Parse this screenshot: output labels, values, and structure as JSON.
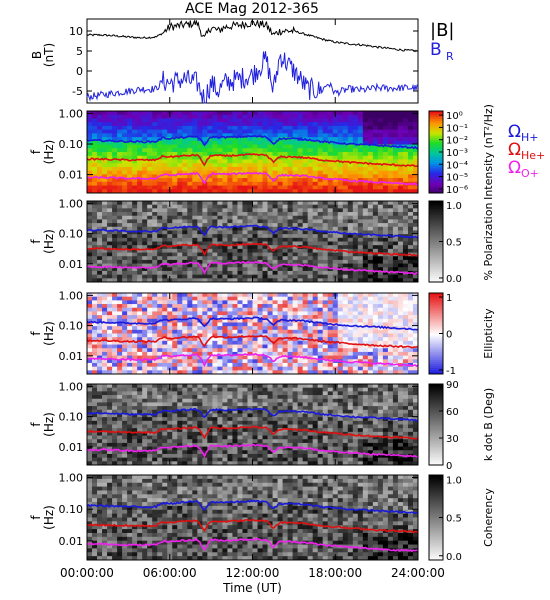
{
  "title": "ACE Mag 2012-365",
  "colors": {
    "magnitude": "#000000",
    "radial": "#2222dd",
    "proton": "#1a1adc",
    "helium": "#e01010",
    "oxygen": "#ee22ee"
  },
  "chart_data": [
    {
      "type": "line",
      "panel": "field",
      "ylabel": "B (nT)",
      "ylim": [
        -8,
        13
      ],
      "y_ticks": [
        "10",
        "5",
        "0",
        "-5"
      ],
      "legend": [
        {
          "label": "|B|",
          "color": "#000000"
        },
        {
          "label": "B",
          "sub": "R",
          "color": "#2222dd"
        }
      ],
      "series": [
        {
          "key": "B_mag",
          "color": "#000000",
          "x": [
            0,
            1,
            2,
            3,
            4,
            5,
            5.5,
            6,
            7,
            8,
            8.5,
            9,
            9.5,
            10,
            11,
            12,
            13,
            13.5,
            14,
            15,
            16,
            17,
            18,
            19,
            20,
            21,
            22,
            23,
            24
          ],
          "y": [
            9,
            9,
            8.8,
            8.5,
            8.3,
            8.5,
            9.5,
            11,
            11.5,
            12,
            8,
            11,
            10,
            11,
            11.5,
            12,
            11.5,
            9,
            10,
            10,
            9,
            8,
            7.2,
            6.8,
            6.5,
            6,
            5.6,
            5.2,
            5
          ]
        },
        {
          "key": "B_R",
          "color": "#2222dd",
          "x": [
            0,
            1,
            2,
            3,
            4,
            5,
            5.5,
            6,
            7,
            8,
            8.5,
            9,
            9.5,
            10,
            11,
            12,
            13,
            13.5,
            14,
            15,
            16,
            17,
            17.5,
            18,
            19,
            20,
            21,
            22,
            23,
            24
          ],
          "y": [
            -6.5,
            -6,
            -5.5,
            -5,
            -4.5,
            -4.5,
            -2.5,
            -3,
            -2,
            -3,
            -7,
            -3,
            -5,
            -3,
            -2,
            -1,
            3,
            -5,
            4,
            0,
            -4.5,
            -5,
            -3,
            -5.5,
            -4.5,
            -4.8,
            -4.2,
            -4.3,
            -4.2,
            -4.3
          ]
        }
      ]
    },
    {
      "type": "heatmap",
      "panel": "intensity",
      "ylabel": "f (Hz)",
      "y_ticks": [
        "1.00",
        "0.10",
        "0.01"
      ],
      "ylim": [
        0.0025,
        1.2
      ],
      "colorbar_label": "Intensity (nT²/Hz)",
      "colorbar_ticks": [
        "10⁰",
        "10⁻¹",
        "10⁻²",
        "10⁻³",
        "10⁻⁴",
        "10⁻⁵",
        "10⁻⁶"
      ],
      "gyrofrequency_labels": [
        {
          "label": "Ω",
          "sub": "H+",
          "color": "#1a1adc"
        },
        {
          "label": "Ω",
          "sub": "He+",
          "color": "#e01010"
        },
        {
          "label": "Ω",
          "sub": "O+",
          "color": "#ee22ee"
        }
      ]
    },
    {
      "type": "heatmap",
      "panel": "polarization",
      "ylabel": "f (Hz)",
      "y_ticks": [
        "1.00",
        "0.10",
        "0.01"
      ],
      "ylim": [
        0.0025,
        1.2
      ],
      "colorbar_label": "% Polarization",
      "colorbar_ticks": [
        "1.0",
        "0.5",
        "0.0"
      ]
    },
    {
      "type": "heatmap",
      "panel": "ellipticity",
      "ylabel": "f (Hz)",
      "y_ticks": [
        "1.00",
        "0.10",
        "0.01"
      ],
      "ylim": [
        0.0025,
        1.2
      ],
      "colorbar_label": "Ellipticity",
      "colorbar_ticks": [
        "1",
        "0",
        "-1"
      ]
    },
    {
      "type": "heatmap",
      "panel": "kdotb",
      "ylabel": "f (Hz)",
      "y_ticks": [
        "1.00",
        "0.10",
        "0.01"
      ],
      "ylim": [
        0.0025,
        1.2
      ],
      "colorbar_label": "k dot B (Deg)",
      "colorbar_ticks": [
        "90",
        "60",
        "30",
        "0"
      ]
    },
    {
      "type": "heatmap",
      "panel": "coherency",
      "ylabel": "f (Hz)",
      "y_ticks": [
        "1.00",
        "0.10",
        "0.01"
      ],
      "ylim": [
        0.0025,
        1.2
      ],
      "colorbar_label": "Coherency",
      "colorbar_ticks": [
        "1.0",
        "0.5",
        "0.0"
      ]
    }
  ],
  "gyrofrequencies": {
    "x": [
      0,
      1,
      2,
      3,
      4,
      5,
      5.5,
      6,
      7,
      8,
      8.5,
      9,
      10,
      11,
      12,
      13,
      13.5,
      14,
      15,
      16,
      17,
      18,
      19,
      20,
      21,
      22,
      23,
      24
    ],
    "H": [
      0.13,
      0.13,
      0.125,
      0.12,
      0.118,
      0.12,
      0.16,
      0.15,
      0.165,
      0.175,
      0.09,
      0.17,
      0.165,
      0.17,
      0.18,
      0.17,
      0.1,
      0.15,
      0.15,
      0.14,
      0.12,
      0.11,
      0.1,
      0.095,
      0.09,
      0.085,
      0.08,
      0.075
    ],
    "He": [
      0.032,
      0.032,
      0.031,
      0.03,
      0.03,
      0.03,
      0.04,
      0.038,
      0.041,
      0.044,
      0.02,
      0.043,
      0.041,
      0.043,
      0.045,
      0.043,
      0.025,
      0.038,
      0.038,
      0.035,
      0.03,
      0.028,
      0.025,
      0.024,
      0.022,
      0.021,
      0.02,
      0.019
    ],
    "O": [
      0.008,
      0.008,
      0.0078,
      0.0075,
      0.0074,
      0.0075,
      0.01,
      0.0095,
      0.0103,
      0.011,
      0.005,
      0.0108,
      0.0103,
      0.0108,
      0.0113,
      0.0108,
      0.0063,
      0.0095,
      0.0095,
      0.0088,
      0.0075,
      0.007,
      0.0063,
      0.006,
      0.0056,
      0.0053,
      0.005,
      0.0048
    ]
  },
  "x_axis": {
    "label": "Time (UT)",
    "ticks": [
      "00:00:00",
      "06:00:00",
      "12:00:00",
      "18:00:00",
      "24:00:00"
    ],
    "xlim": [
      0,
      24
    ]
  }
}
